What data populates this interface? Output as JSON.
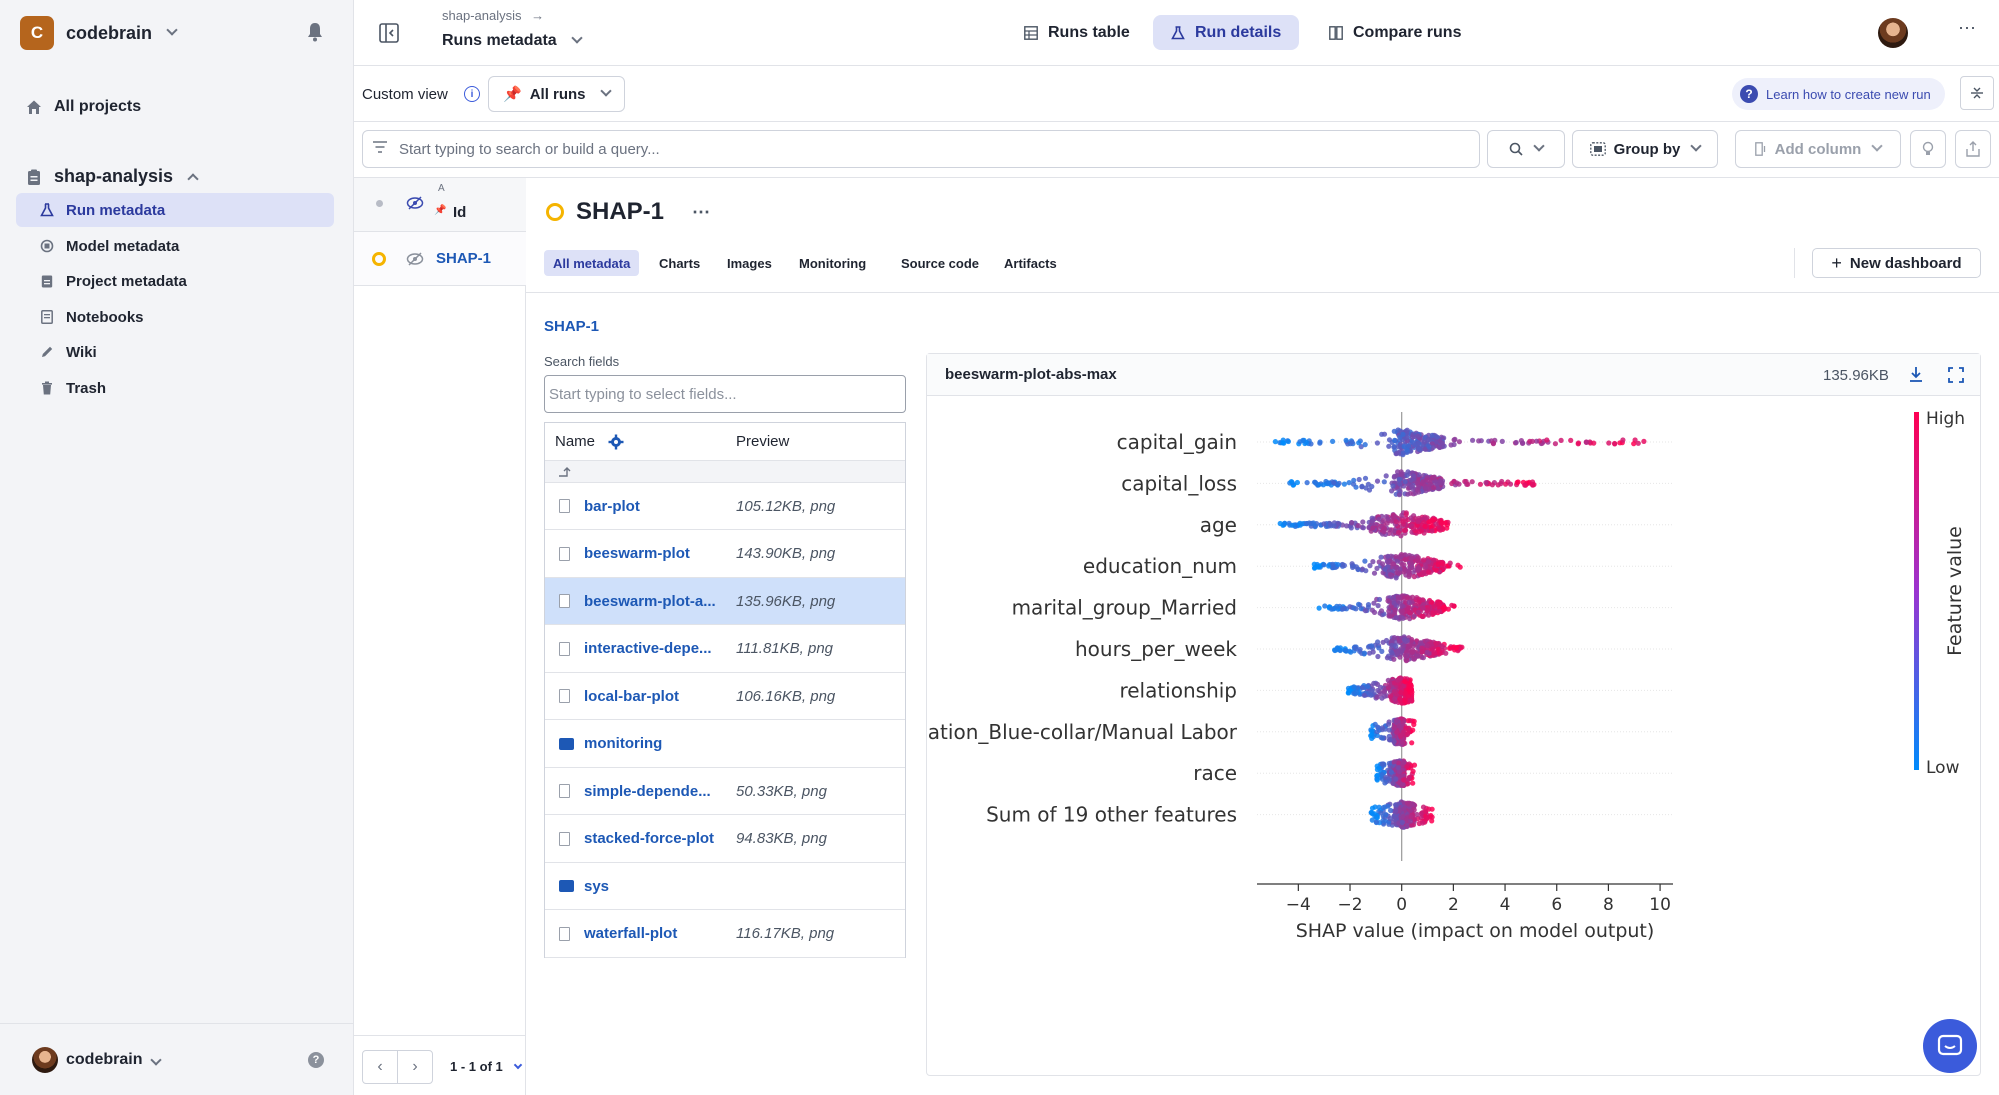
{
  "org": {
    "initial": "C",
    "name": "codebrain"
  },
  "sidebar": {
    "all_projects": "All projects",
    "project": "shap-analysis",
    "items": [
      "Run metadata",
      "Model metadata",
      "Project metadata",
      "Notebooks",
      "Wiki",
      "Trash"
    ],
    "footer_user": "codebrain"
  },
  "topbar": {
    "breadcrumb_project": "shap-analysis",
    "breadcrumb_page": "Runs metadata",
    "tabs": [
      "Runs table",
      "Run details",
      "Compare runs"
    ],
    "active_tab": "Run details"
  },
  "viewbar": {
    "custom_view": "Custom view",
    "runs_filter": "All runs",
    "learn_link": "Learn how to create new run"
  },
  "search": {
    "placeholder": "Start typing to search or build a query...",
    "group_by": "Group by",
    "add_column": "Add column"
  },
  "runs": {
    "sort_marker": "A",
    "id_header": "Id",
    "row_id": "SHAP-1",
    "pagination": "1 - 1 of 1"
  },
  "run": {
    "title": "SHAP-1",
    "tabs": [
      "All metadata",
      "Charts",
      "Images",
      "Monitoring",
      "Source code",
      "Artifacts"
    ],
    "new_dashboard": "New dashboard",
    "path": "SHAP-1",
    "search_fields_label": "Search fields",
    "search_fields_placeholder": "Start typing to select fields...",
    "col_name": "Name",
    "col_preview": "Preview",
    "fields": [
      {
        "name": "bar-plot",
        "preview": "105.12KB, png",
        "kind": "file"
      },
      {
        "name": "beeswarm-plot",
        "preview": "143.90KB, png",
        "kind": "file"
      },
      {
        "name": "beeswarm-plot-a...",
        "preview": "135.96KB, png",
        "kind": "file",
        "active": true
      },
      {
        "name": "interactive-depe...",
        "preview": "111.81KB, png",
        "kind": "file"
      },
      {
        "name": "local-bar-plot",
        "preview": "106.16KB, png",
        "kind": "file"
      },
      {
        "name": "monitoring",
        "preview": "",
        "kind": "folder"
      },
      {
        "name": "simple-depende...",
        "preview": "50.33KB, png",
        "kind": "file"
      },
      {
        "name": "stacked-force-plot",
        "preview": "94.83KB, png",
        "kind": "file"
      },
      {
        "name": "sys",
        "preview": "",
        "kind": "folder"
      },
      {
        "name": "waterfall-plot",
        "preview": "116.17KB, png",
        "kind": "file"
      }
    ]
  },
  "card": {
    "title": "beeswarm-plot-abs-max",
    "size": "135.96KB"
  },
  "chart_data": {
    "type": "scatter",
    "xlabel": "SHAP value (impact on model output)",
    "xticks": [
      -4,
      -2,
      0,
      2,
      4,
      6,
      8,
      10
    ],
    "xlim": [
      -5.6,
      10.5
    ],
    "features": [
      "capital_gain",
      "capital_loss",
      "age",
      "education_num",
      "marital_group_Married",
      "hours_per_week",
      "relationship",
      "occupation_Blue-collar/Manual Labor",
      "race",
      "Sum of 19 other features"
    ],
    "colorbar": {
      "label": "Feature value",
      "high": "High",
      "low": "Low",
      "high_color": "#ff0052",
      "low_color": "#008bfb"
    },
    "ranges": [
      {
        "min": -4.9,
        "max": 9.6,
        "low_spread": 0.2,
        "high_max": 9.6
      },
      {
        "min": -4.4,
        "max": 5.3,
        "low_spread": 0.1,
        "high_max": 5.3
      },
      {
        "min": -4.8,
        "max": 1.9,
        "low_spread": -2.0,
        "high_max": 1.9
      },
      {
        "min": -3.4,
        "max": 2.3,
        "low_spread": -1.2,
        "high_max": 2.3
      },
      {
        "min": -3.2,
        "max": 2.1,
        "low_spread": -0.9,
        "high_max": 2.1
      },
      {
        "min": -2.6,
        "max": 2.4,
        "low_spread": -0.7,
        "high_max": 2.4
      },
      {
        "min": -2.1,
        "max": 0.4,
        "low_spread": -0.8,
        "high_max": 0.4
      },
      {
        "min": -1.2,
        "max": 0.5,
        "low_spread": 0.2,
        "high_max": 0.1
      },
      {
        "min": -1.0,
        "max": 0.5,
        "low_spread": 0.3,
        "high_max": 0.1
      },
      {
        "min": -1.2,
        "max": 1.2,
        "low_spread": 0.3,
        "high_max": 0.5
      }
    ]
  }
}
